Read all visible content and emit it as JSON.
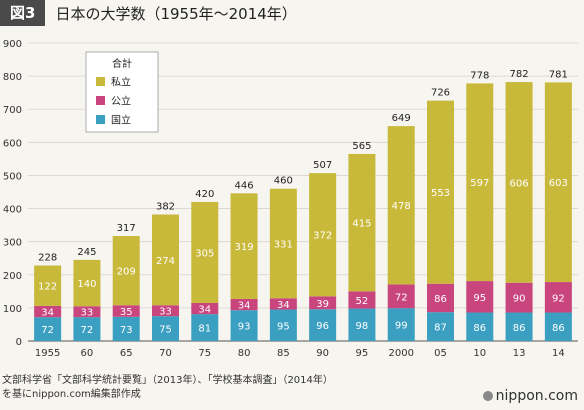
{
  "header": {
    "figure_label": "図3",
    "title": "日本の大学数（1955年～2014年）"
  },
  "chart_data": {
    "type": "bar",
    "stacked": true,
    "categories": [
      "1955",
      "60",
      "65",
      "70",
      "75",
      "80",
      "85",
      "90",
      "95",
      "2000",
      "05",
      "10",
      "13",
      "14"
    ],
    "series": [
      {
        "name": "国立",
        "color": "#3a9fc1",
        "values": [
          72,
          72,
          73,
          75,
          81,
          93,
          95,
          96,
          98,
          99,
          87,
          86,
          86,
          86
        ]
      },
      {
        "name": "公立",
        "color": "#c9457e",
        "values": [
          34,
          33,
          35,
          33,
          34,
          34,
          34,
          39,
          52,
          72,
          86,
          95,
          90,
          92
        ]
      },
      {
        "name": "私立",
        "color": "#c9b93a",
        "values": [
          122,
          140,
          209,
          274,
          305,
          319,
          331,
          372,
          415,
          478,
          553,
          597,
          606,
          603
        ]
      }
    ],
    "totals": [
      228,
      245,
      317,
      382,
      420,
      446,
      460,
      507,
      565,
      649,
      726,
      778,
      782,
      781
    ],
    "ylim": [
      0,
      900
    ],
    "yticks": [
      0,
      100,
      200,
      300,
      400,
      500,
      600,
      700,
      800,
      900
    ],
    "legend": {
      "title": "合計",
      "position": "top-left",
      "order": [
        "私立",
        "公立",
        "国立"
      ]
    },
    "grid": true
  },
  "footer": {
    "source_line1": "文部科学省「文部科学統計要覧」（2013年）、「学校基本調査」（2014年）",
    "source_line2": "を基にnippon.com編集部作成",
    "logo": "nippon.com"
  }
}
